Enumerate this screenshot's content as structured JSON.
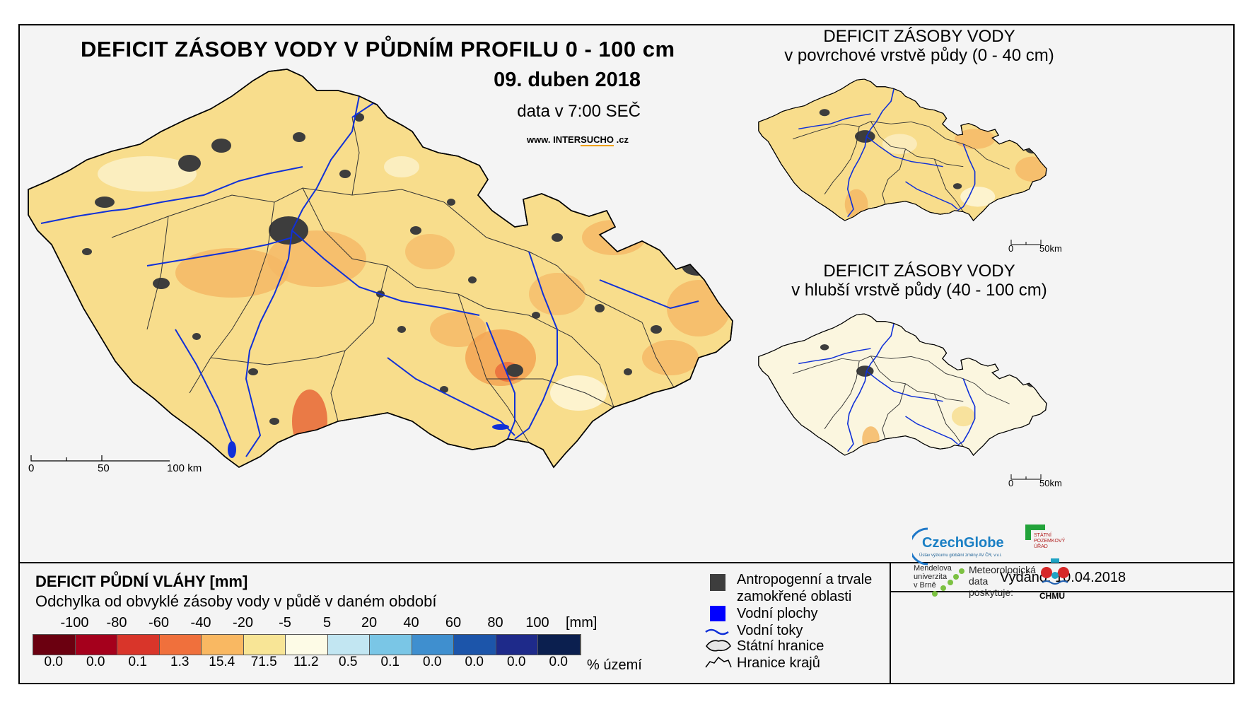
{
  "main_map": {
    "title": "DEFICIT ZÁSOBY VODY V PŮDNÍM PROFILU 0 - 100 cm",
    "date": "09. duben 2018",
    "data_time": "data v 7:00 SEČ",
    "website": {
      "prefix": "www. INTER",
      "highlight": "SUCHO",
      "suffix": " .cz"
    },
    "scalebar": {
      "labels": [
        "0",
        "50",
        "100 km"
      ]
    }
  },
  "inset_top": {
    "title_line1": "DEFICIT ZÁSOBY VODY",
    "title_line2": "v povrchové vrstvě půdy (0 - 40 cm)",
    "scalebar": {
      "labels": [
        "0",
        "50km"
      ]
    }
  },
  "inset_bottom": {
    "title_line1": "DEFICIT ZÁSOBY VODY",
    "title_line2": "v hlubší vrstvě půdy (40 - 100 cm)",
    "scalebar": {
      "labels": [
        "0",
        "50km"
      ]
    }
  },
  "legend": {
    "title": "DEFICIT PŮDNÍ VLÁHY [mm]",
    "subtitle": "Odchylka od obvyklé zásoby vody v půdě v daném období",
    "unit": "[mm]",
    "percent_label": "% území",
    "ticks": [
      "-100",
      "-80",
      "-60",
      "-40",
      "-20",
      "-5",
      "5",
      "20",
      "40",
      "60",
      "80",
      "100"
    ],
    "classes": [
      {
        "color": "#6b0010",
        "percent": "0.0"
      },
      {
        "color": "#a5001c",
        "percent": "0.0"
      },
      {
        "color": "#d9352a",
        "percent": "0.1"
      },
      {
        "color": "#f0703c",
        "percent": "1.3"
      },
      {
        "color": "#f9b862",
        "percent": "15.4"
      },
      {
        "color": "#f8e596",
        "percent": "71.5"
      },
      {
        "color": "#fdfbe6",
        "percent": "11.2"
      },
      {
        "color": "#c2e6f2",
        "percent": "0.5"
      },
      {
        "color": "#7ac6e6",
        "percent": "0.1"
      },
      {
        "color": "#3f8fcf",
        "percent": "0.0"
      },
      {
        "color": "#1c55aa",
        "percent": "0.0"
      },
      {
        "color": "#1e2a8a",
        "percent": "0.0"
      },
      {
        "color": "#0b1f4f",
        "percent": "0.0"
      }
    ]
  },
  "symbols": {
    "anthropogenic_line1": "Antropogenní a trvale",
    "anthropogenic_line2": "zamokřené oblasti",
    "water_bodies": "Vodní plochy",
    "rivers": "Vodní toky",
    "state_border": "Státní hranice",
    "region_border": "Hranice krajů"
  },
  "issued": "Vydáno: 10.04.2018",
  "logos": {
    "czechglobe": "CzechGlobe",
    "czechglobe_sub": "Ústav výzkumu globální změny AV ČR, v.v.i.",
    "spu_line1": "STÁTNÍ",
    "spu_line2": "POZEMKOVÝ",
    "spu_line3": "ÚŘAD",
    "mendelu_line1": "Mendelova",
    "mendelu_line2": "univerzita",
    "mendelu_line3": "v Brně",
    "meteo_line1": "Meteorologická",
    "meteo_line2": "data",
    "meteo_line3": "poskytuje:",
    "chmu": "ČHMÚ"
  },
  "colors": {
    "map_base": "#f8dd8c",
    "map_orange": "#f5b865",
    "urban": "#3d3d3d",
    "river": "#1030d8",
    "inset_bottom_base": "#fbf6df"
  }
}
